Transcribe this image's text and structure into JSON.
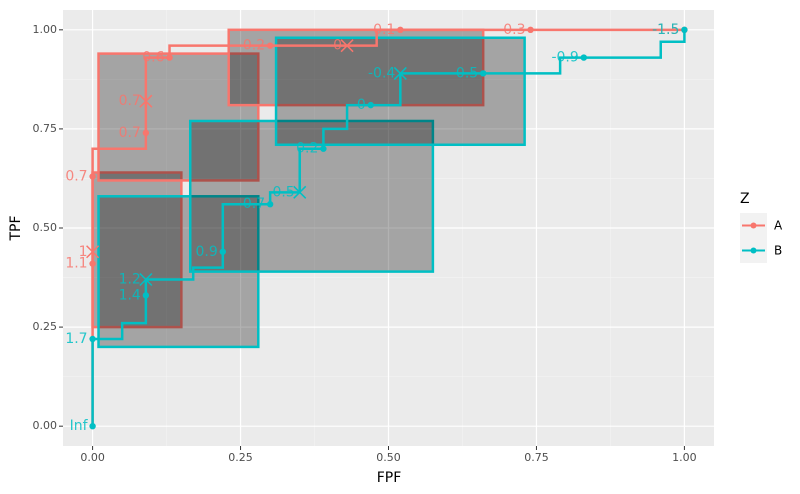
{
  "chart_data": {
    "type": "roc",
    "x_label": "FPF",
    "y_label": "TPF",
    "legend_title": "Z",
    "xlim": [
      -0.05,
      1.05
    ],
    "ylim": [
      -0.05,
      1.05
    ],
    "xticks": [
      {
        "value": 0,
        "label": "0.00"
      },
      {
        "value": 0.25,
        "label": "0.25"
      },
      {
        "value": 0.5,
        "label": "0.50"
      },
      {
        "value": 0.75,
        "label": "0.75"
      },
      {
        "value": 1,
        "label": "1.00"
      }
    ],
    "yticks": [
      {
        "value": 0,
        "label": "0.00"
      },
      {
        "value": 0.25,
        "label": "0.25"
      },
      {
        "value": 0.5,
        "label": "0.50"
      },
      {
        "value": 0.75,
        "label": "0.75"
      },
      {
        "value": 1,
        "label": "1.00"
      }
    ],
    "grid": true,
    "series": [
      {
        "name": "A",
        "color": "#f8766d",
        "x": [
          0,
          0,
          0.09,
          0.09,
          0.13,
          0.13,
          0.3,
          0.48,
          0.48,
          1
        ],
        "values": [
          0,
          0.7,
          0.7,
          0.93,
          0.93,
          0.96,
          0.96,
          0.96,
          1.0,
          1.0
        ],
        "points": {
          "x": [
            0,
            0,
            0.09,
            0.13,
            0.3,
            0.52,
            0.74,
            1
          ],
          "values": [
            0.41,
            0.63,
            0.74,
            0.93,
            0.96,
            1.0,
            1.0,
            1.0
          ],
          "labels": [
            "1.1",
            "0.7",
            "0.7",
            "0.6",
            "0.2",
            "0.1",
            "0.3",
            "-1.5"
          ]
        },
        "crosses": {
          "x": [
            0,
            0.09,
            0.43
          ],
          "values": [
            0.44,
            0.82,
            0.96
          ],
          "labels": [
            "1",
            "0.7",
            "0"
          ]
        },
        "regions": [
          {
            "x": [
              0,
              0.15
            ],
            "y": [
              0.25,
              0.64
            ]
          },
          {
            "x": [
              0.01,
              0.28
            ],
            "y": [
              0.62,
              0.94
            ]
          },
          {
            "x": [
              0.23,
              0.66
            ],
            "y": [
              0.81,
              1.0
            ]
          }
        ]
      },
      {
        "name": "B",
        "color": "#00bfc4",
        "x": [
          0,
          0,
          0.05,
          0.05,
          0.09,
          0.09,
          0.17,
          0.17,
          0.22,
          0.22,
          0.3,
          0.3,
          0.35,
          0.35,
          0.39,
          0.39,
          0.43,
          0.43,
          0.52,
          0.52,
          0.79,
          0.79,
          0.96,
          0.96,
          1,
          1
        ],
        "values": [
          0,
          0.22,
          0.22,
          0.26,
          0.26,
          0.37,
          0.37,
          0.4,
          0.4,
          0.56,
          0.56,
          0.59,
          0.59,
          0.7,
          0.7,
          0.75,
          0.75,
          0.81,
          0.81,
          0.89,
          0.89,
          0.93,
          0.93,
          0.97,
          0.97,
          1.0
        ],
        "points": {
          "x": [
            0,
            0,
            0.09,
            0.22,
            0.3,
            0.39,
            0.47,
            0.66,
            0.83,
            1
          ],
          "values": [
            0,
            0.22,
            0.33,
            0.44,
            0.56,
            0.7,
            0.81,
            0.89,
            0.93,
            1.0
          ],
          "labels": [
            "Inf",
            "1.7",
            "1.4",
            "0.9",
            "0.7",
            "0.2",
            "0",
            "0.5",
            "-0.9",
            "-1.5"
          ]
        },
        "crosses": {
          "x": [
            0.09,
            0.35,
            0.52
          ],
          "values": [
            0.37,
            0.59,
            0.89
          ],
          "labels": [
            "1.2",
            "0.5",
            "-0.4"
          ]
        },
        "regions": [
          {
            "x": [
              0.01,
              0.28
            ],
            "y": [
              0.2,
              0.58
            ]
          },
          {
            "x": [
              0.165,
              0.575
            ],
            "y": [
              0.39,
              0.77
            ]
          },
          {
            "x": [
              0.31,
              0.73
            ],
            "y": [
              0.71,
              0.98
            ]
          }
        ]
      }
    ]
  }
}
